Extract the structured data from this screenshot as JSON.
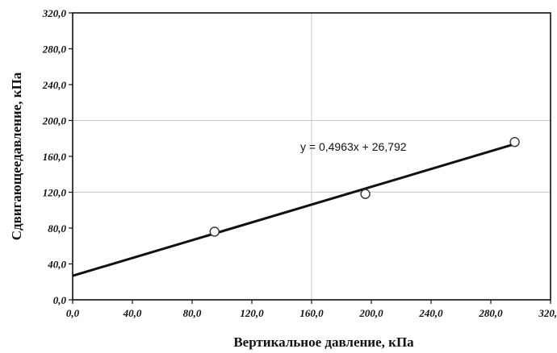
{
  "chart_data": {
    "type": "scatter",
    "xlabel": "Вертикальное давление, кПа",
    "ylabel": "Сдвигающеедавление, кПа",
    "xlim": [
      0,
      320
    ],
    "ylim": [
      0,
      320
    ],
    "x_ticks": [
      "0,0",
      "40,0",
      "80,0",
      "120,0",
      "160,0",
      "200,0",
      "240,0",
      "280,0",
      "320,0"
    ],
    "y_ticks": [
      "0,0",
      "40,0",
      "80,0",
      "120,0",
      "160,0",
      "200,0",
      "240,0",
      "280,0",
      "320,0"
    ],
    "x_tick_values": [
      0,
      40,
      80,
      120,
      160,
      200,
      240,
      280,
      320
    ],
    "y_tick_values": [
      0,
      40,
      80,
      120,
      160,
      200,
      240,
      280,
      320
    ],
    "grid_x_values": [
      160,
      320
    ],
    "grid_y_values": [
      120,
      200
    ],
    "points": [
      {
        "x": 95,
        "y": 76
      },
      {
        "x": 196,
        "y": 118
      },
      {
        "x": 296,
        "y": 176
      }
    ],
    "trendline": {
      "slope": 0.4963,
      "intercept": 26.792,
      "x_start": 0,
      "x_end": 296
    },
    "equation_text": "y = 0,4963x + 26,792"
  }
}
